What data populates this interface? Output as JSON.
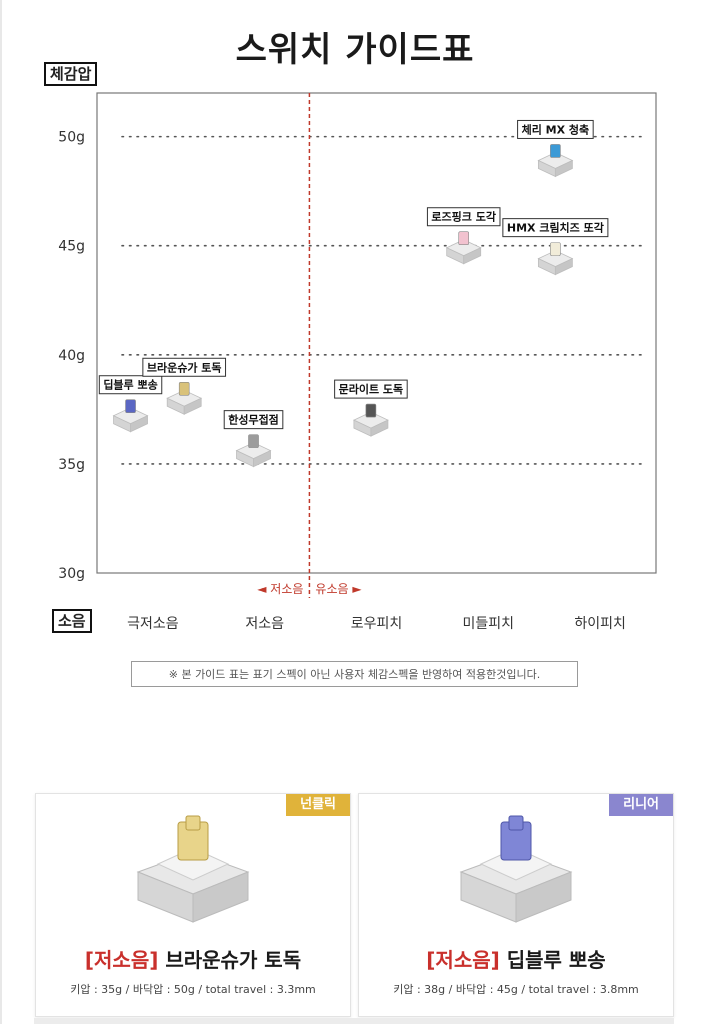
{
  "title": "스위치 가이드표",
  "note": "※ 본 가이드 표는 표기 스펙이 아닌 사용자 체감스펙을 반영하여 적용한것입니다.",
  "colors": {
    "divider": "#c0392b",
    "grid": "#555555",
    "badge_nonclick": "#e0b33a",
    "badge_linear": "#8a86cf",
    "tag_red": "#c9302c"
  },
  "chart_data": {
    "type": "scatter",
    "title": "스위치 가이드표",
    "ylabel": "체감압",
    "xlabel": "소음",
    "ylim": [
      30,
      52
    ],
    "y_ticks": [
      "30g",
      "35g",
      "40g",
      "45g",
      "50g"
    ],
    "y_tick_values": [
      30,
      35,
      40,
      45,
      50
    ],
    "x_categories": [
      "극저소음",
      "저소음",
      "로우피치",
      "미들피치",
      "하이피치"
    ],
    "divider": {
      "x_index": 1.9,
      "left_label": "◄ 저소음",
      "right_label": "유소음 ►"
    },
    "grid": true,
    "points": [
      {
        "name": "체리 MX 청축",
        "x": 4.1,
        "y": 49,
        "stem": "#3c9ad6",
        "label_side": "above"
      },
      {
        "name": "로즈핑크 도각",
        "x": 3.28,
        "y": 45,
        "stem": "#f2c2cf",
        "label_side": "above"
      },
      {
        "name": "HMX 크림치즈 또각",
        "x": 4.1,
        "y": 44.5,
        "stem": "#f1ecd9",
        "label_side": "above"
      },
      {
        "name": "딥블루 뽀송",
        "x": 0.3,
        "y": 37.3,
        "stem": "#5b67c4",
        "label_side": "above"
      },
      {
        "name": "브라운슈가 토독",
        "x": 0.78,
        "y": 38.1,
        "stem": "#d9c27a",
        "label_side": "above"
      },
      {
        "name": "한성무접점",
        "x": 1.4,
        "y": 35.7,
        "stem": "#9c9c9c",
        "label_side": "above"
      },
      {
        "name": "문라이트 도독",
        "x": 2.45,
        "y": 37.1,
        "stem": "#555555",
        "label_side": "above"
      }
    ]
  },
  "cards": [
    {
      "badge": "넌클릭",
      "tag": "[저소음]",
      "name": "브라운슈가 토독",
      "spec": "키압 : 35g / 바닥압 : 50g / total travel : 3.3mm",
      "stem_color": "#e8d48a"
    },
    {
      "badge": "리니어",
      "tag": "[저소음]",
      "name": "딥블루 뽀송",
      "spec": "키압 : 38g / 바닥압 : 45g / total travel : 3.8mm",
      "stem_color": "#7f86d6"
    }
  ]
}
